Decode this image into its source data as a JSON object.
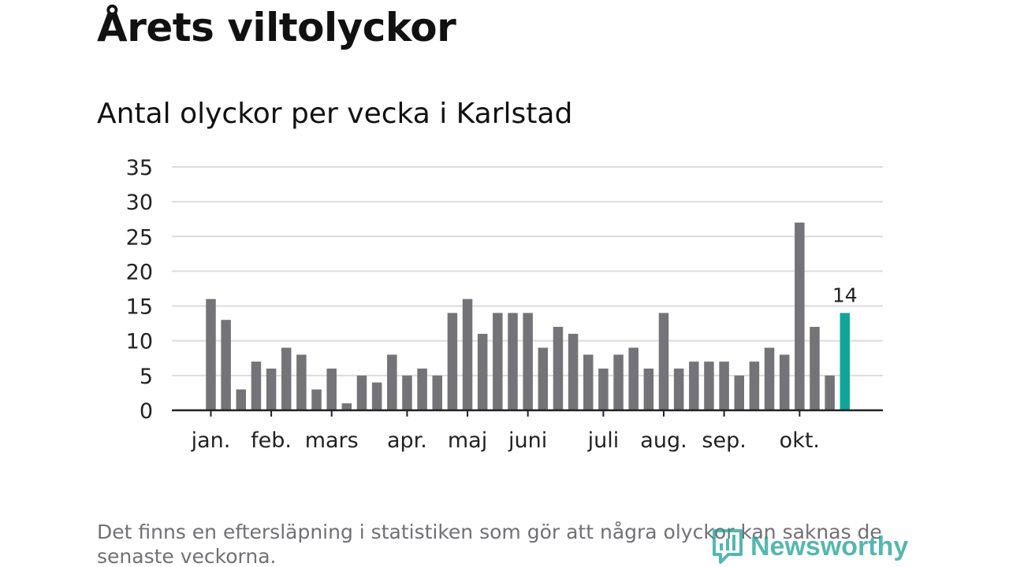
{
  "title": "Årets viltolyckor",
  "subtitle": "Antal olyckor per vecka i Karlstad",
  "footnote": "Det finns en eftersläpning i statistiken som gör att några olyckor kan saknas de senaste veckorna.",
  "logo": {
    "text": "Newsworthy",
    "icon": "newsworthy-chart-icon"
  },
  "colors": {
    "bar": "#747378",
    "highlight": "#11a59a",
    "grid": "#dcdcdc",
    "axis": "#222222",
    "logo": "#1b9f96"
  },
  "chart_data": {
    "type": "bar",
    "title": "Antal olyckor per vecka i Karlstad",
    "xlabel": "",
    "ylabel": "",
    "ylim": [
      0,
      35
    ],
    "yticks": [
      0,
      5,
      10,
      15,
      20,
      25,
      30,
      35
    ],
    "grid": true,
    "values": [
      16,
      13,
      3,
      7,
      6,
      9,
      8,
      3,
      6,
      1,
      5,
      4,
      8,
      5,
      6,
      5,
      14,
      16,
      11,
      14,
      14,
      14,
      9,
      12,
      11,
      8,
      6,
      8,
      9,
      6,
      14,
      6,
      7,
      7,
      7,
      5,
      7,
      9,
      8,
      27,
      12,
      5,
      14
    ],
    "highlight_index": 42,
    "highlight_label": "14",
    "month_labels": [
      {
        "label": "jan.",
        "bar": 0
      },
      {
        "label": "feb.",
        "bar": 4
      },
      {
        "label": "mars",
        "bar": 8
      },
      {
        "label": "apr.",
        "bar": 13
      },
      {
        "label": "maj",
        "bar": 17
      },
      {
        "label": "juni",
        "bar": 21
      },
      {
        "label": "juli",
        "bar": 26
      },
      {
        "label": "aug.",
        "bar": 30
      },
      {
        "label": "sep.",
        "bar": 34
      },
      {
        "label": "okt.",
        "bar": 39
      }
    ]
  }
}
